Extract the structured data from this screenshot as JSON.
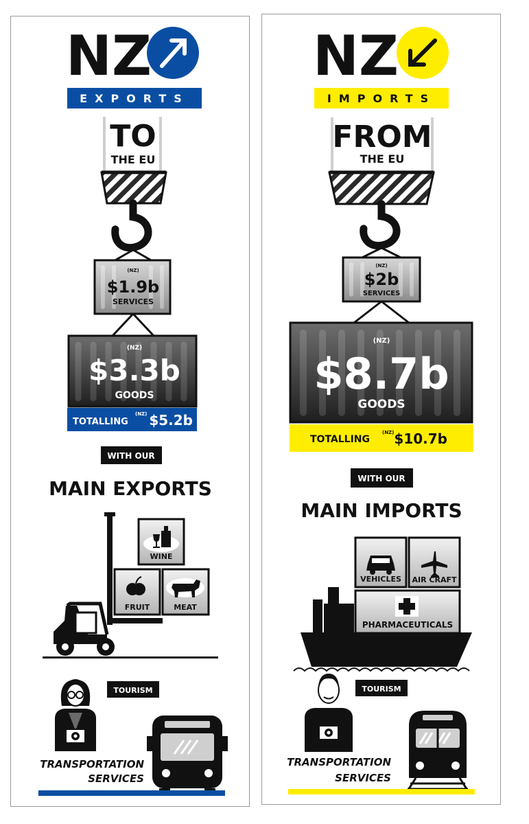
{
  "exports": {
    "logo": "NZ",
    "banner": "EXPORTS",
    "preposition": "TO",
    "destination": "THE EU",
    "services_prefix": "(NZ)",
    "services_value": "$1.9b",
    "services_label": "SERVICES",
    "goods_prefix": "(NZ)",
    "goods_value": "$3.3b",
    "goods_label": "GOODS",
    "total_label": "TOTALLING",
    "total_prefix": "(NZ)",
    "total_value": "$5.2b",
    "with_our": "WITH OUR",
    "main_heading": "MAIN EXPORTS",
    "items": [
      "WINE",
      "FRUIT",
      "MEAT"
    ],
    "tourism": "TOURISM",
    "transport_line1": "TRANSPORTATION",
    "transport_line2": "SERVICES",
    "accent": "#0a4ea3",
    "arrow_direction": "up-right"
  },
  "imports": {
    "logo": "NZ",
    "banner": "IMPORTS",
    "preposition": "FROM",
    "destination": "THE EU",
    "services_prefix": "(NZ)",
    "services_value": "$2b",
    "services_label": "SERVICES",
    "goods_prefix": "(NZ)",
    "goods_value": "$8.7b",
    "goods_label": "GOODS",
    "total_label": "TOTALLING",
    "total_prefix": "(NZ)",
    "total_value": "$10.7b",
    "with_our": "WITH OUR",
    "main_heading": "MAIN IMPORTS",
    "items": [
      "VEHICLES",
      "AIR CRAFT",
      "PHARMACEUTICALS"
    ],
    "tourism": "TOURISM",
    "transport_line1": "TRANSPORTATION",
    "transport_line2": "SERVICES",
    "accent": "#ffed00",
    "arrow_direction": "down-left"
  }
}
